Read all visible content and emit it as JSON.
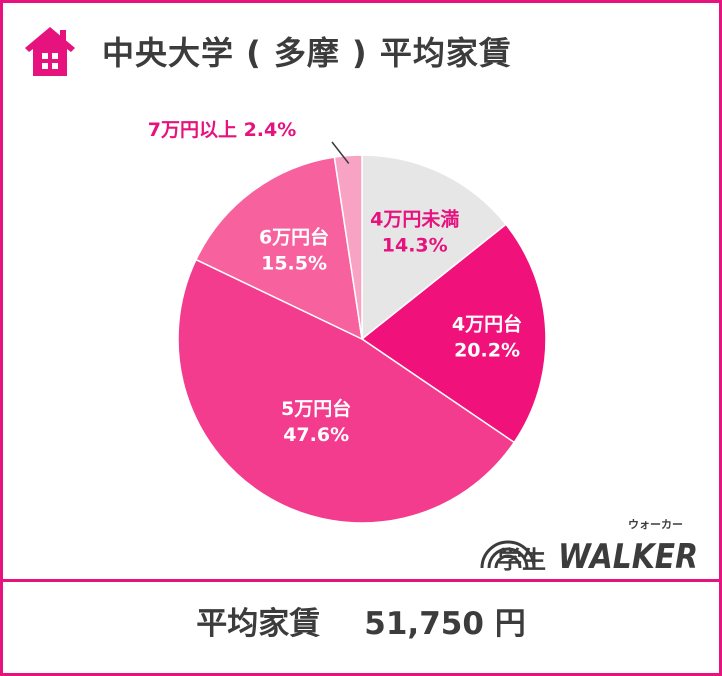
{
  "header": {
    "title": "中央大学 ( 多摩 ) 平均家賃",
    "icon": "house-icon"
  },
  "chart_data": {
    "type": "pie",
    "title": "中央大学 ( 多摩 ) 平均家賃",
    "slices": [
      {
        "label": "4万円未満",
        "value": 14.3,
        "display": "14.3%",
        "color": "#e6e6e6",
        "text_color": "#e6127e"
      },
      {
        "label": "4万円台",
        "value": 20.2,
        "display": "20.2%",
        "color": "#f0127a",
        "text_color": "#ffffff"
      },
      {
        "label": "5万円台",
        "value": 47.6,
        "display": "47.6%",
        "color": "#f33c8d",
        "text_color": "#ffffff"
      },
      {
        "label": "6万円台",
        "value": 15.5,
        "display": "15.5%",
        "color": "#f6619e",
        "text_color": "#ffffff"
      },
      {
        "label": "7万円以上",
        "value": 2.4,
        "display": "2.4%",
        "color": "#f8a3c4",
        "text_color": "#e6127e"
      }
    ],
    "start": "top, clockwise"
  },
  "logo": {
    "main": "学生",
    "brand": "WALKER",
    "ruby": "ウォーカー"
  },
  "footer": {
    "label": "平均家賃",
    "value": "51,750 円"
  },
  "colors": {
    "accent": "#e6127e",
    "text": "#3c3c3c"
  }
}
